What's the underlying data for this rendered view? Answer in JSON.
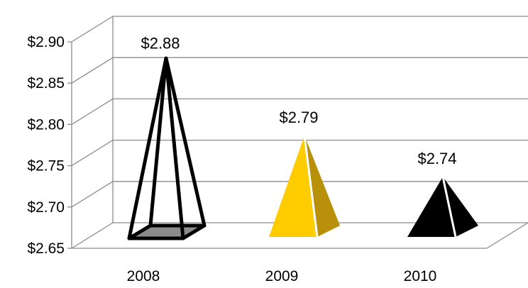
{
  "chart_data": {
    "type": "bar",
    "style": "3d-pyramid",
    "categories": [
      "2008",
      "2009",
      "2010"
    ],
    "series": [
      {
        "values": [
          2.88,
          2.79,
          2.74
        ]
      }
    ],
    "data_labels": [
      "$2.88",
      "$2.79",
      "$2.74"
    ],
    "y_ticks": [
      "$2.65",
      "$2.70",
      "$2.75",
      "$2.80",
      "$2.85",
      "$2.90"
    ],
    "ylim": [
      2.65,
      2.9
    ],
    "grid": true,
    "legend": "none",
    "bar_styles": [
      {
        "fill": "outline",
        "stroke": "#000000",
        "base": "#8c8c8c"
      },
      {
        "fill": "#ffcc00",
        "side": "#b8900a"
      },
      {
        "fill": "#000000",
        "side": "#000000"
      }
    ]
  }
}
